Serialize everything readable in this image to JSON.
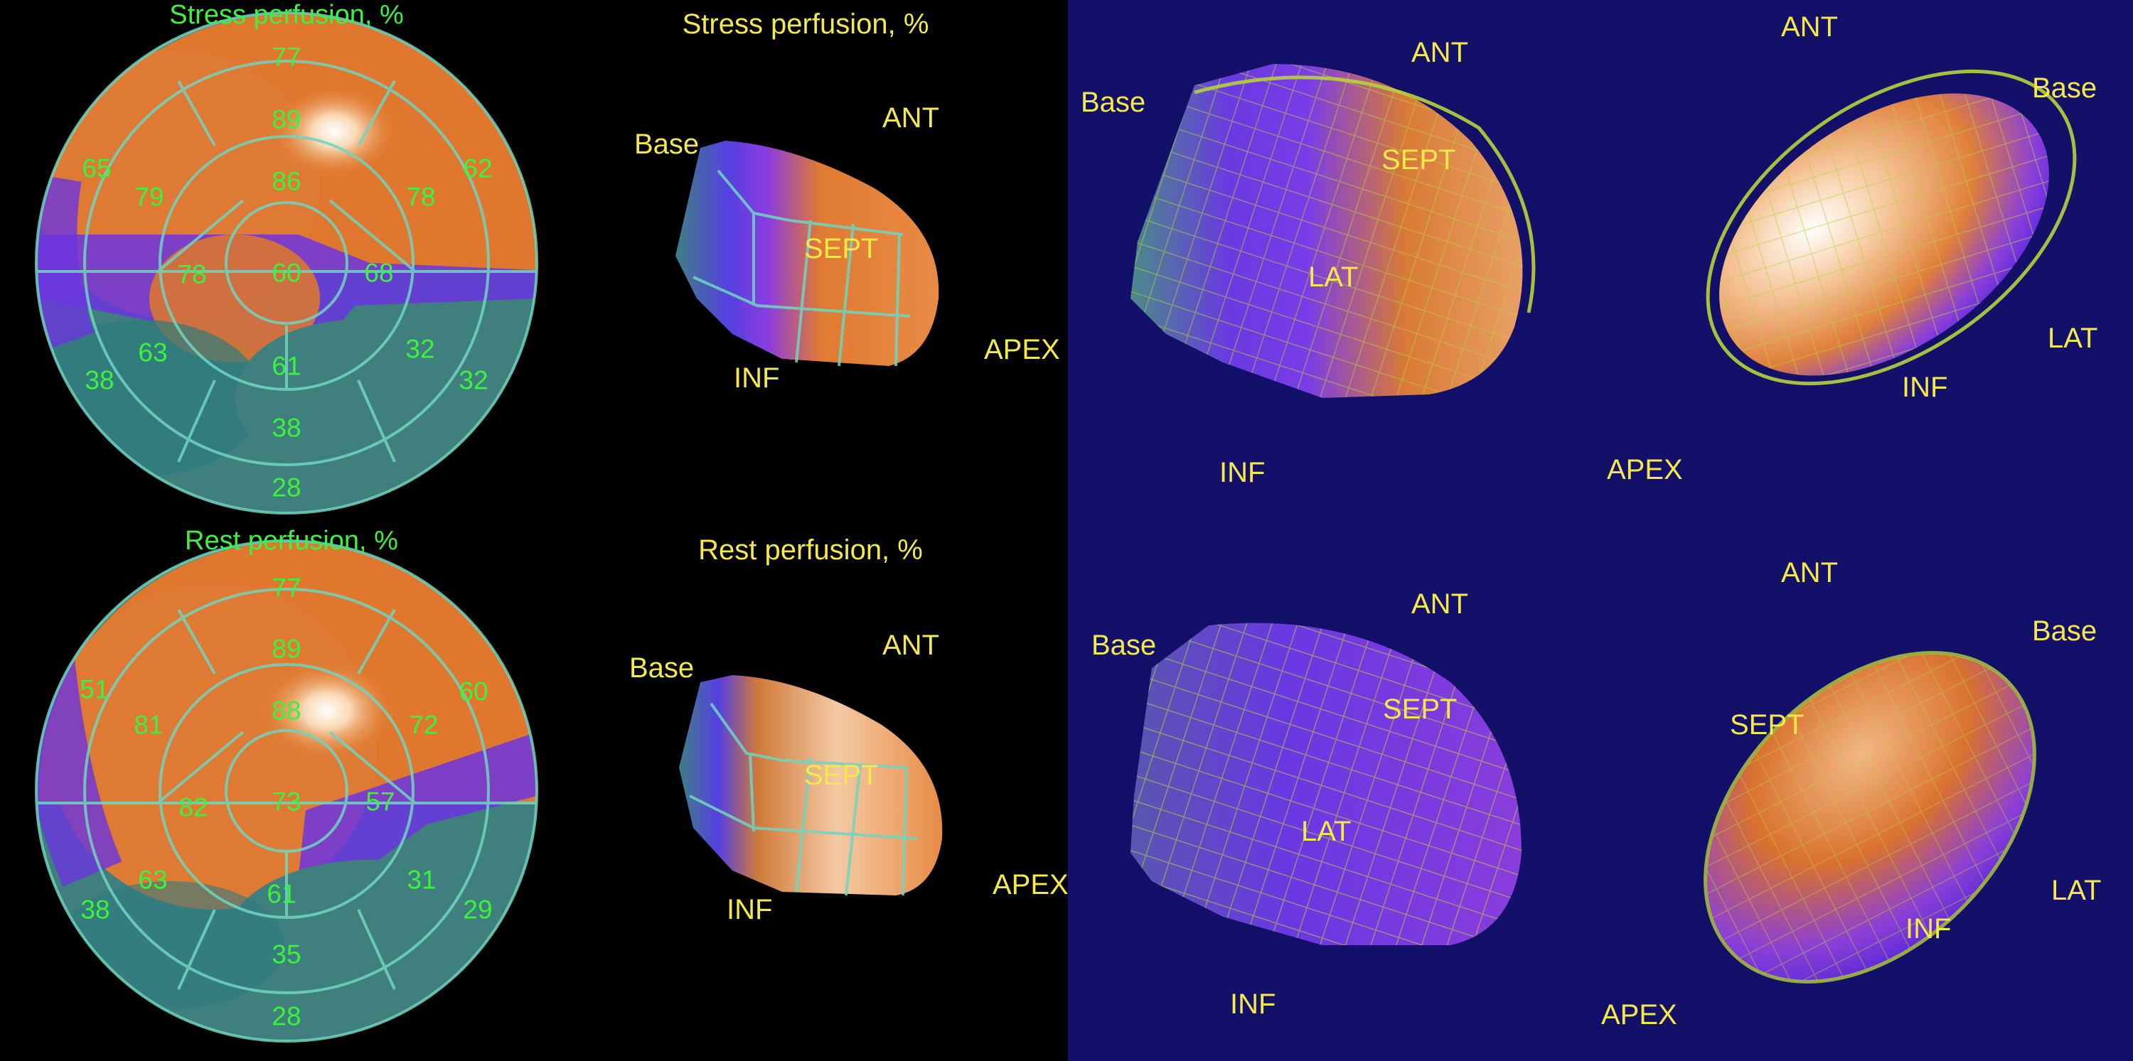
{
  "colors": {
    "background_left": "#000000",
    "background_right": "#13106a",
    "label_yellow": "#f4e84a",
    "label_green": "#3cf23c",
    "segment_line": "#6fd6c0",
    "mesh": "#b8d23a"
  },
  "polar_maps": {
    "stress": {
      "title": "Stress perfusion, %",
      "segments": [
        "77",
        "89",
        "86",
        "65",
        "79",
        "78",
        "62",
        "78",
        "60",
        "68",
        "63",
        "61",
        "32",
        "38",
        "32",
        "38",
        "28"
      ]
    },
    "rest": {
      "title": "Rest perfusion, %",
      "segments": [
        "77",
        "89",
        "88",
        "51",
        "81",
        "72",
        "60",
        "82",
        "73",
        "57",
        "63",
        "61",
        "31",
        "38",
        "29",
        "35",
        "28"
      ]
    }
  },
  "small_views": {
    "stress": {
      "title": "Stress perfusion, %",
      "base": "Base",
      "ant": "ANT",
      "sept": "SEPT",
      "inf": "INF",
      "apex": "APEX"
    },
    "rest": {
      "title": "Rest perfusion, %",
      "base": "Base",
      "ant": "ANT",
      "sept": "SEPT",
      "inf": "INF",
      "apex": "APEX"
    }
  },
  "views_3d": {
    "top_left": {
      "base": "Base",
      "ant": "ANT",
      "sept": "SEPT",
      "lat": "LAT",
      "inf": "INF"
    },
    "top_right": {
      "ant": "ANT",
      "base": "Base",
      "lat": "LAT",
      "inf": "INF",
      "apex": "APEX"
    },
    "bottom_left": {
      "base": "Base",
      "ant": "ANT",
      "sept": "SEPT",
      "lat": "LAT",
      "inf": "INF"
    },
    "bottom_right": {
      "ant": "ANT",
      "base": "Base",
      "sept": "SEPT",
      "lat": "LAT",
      "inf": "INF",
      "apex": "APEX"
    }
  }
}
